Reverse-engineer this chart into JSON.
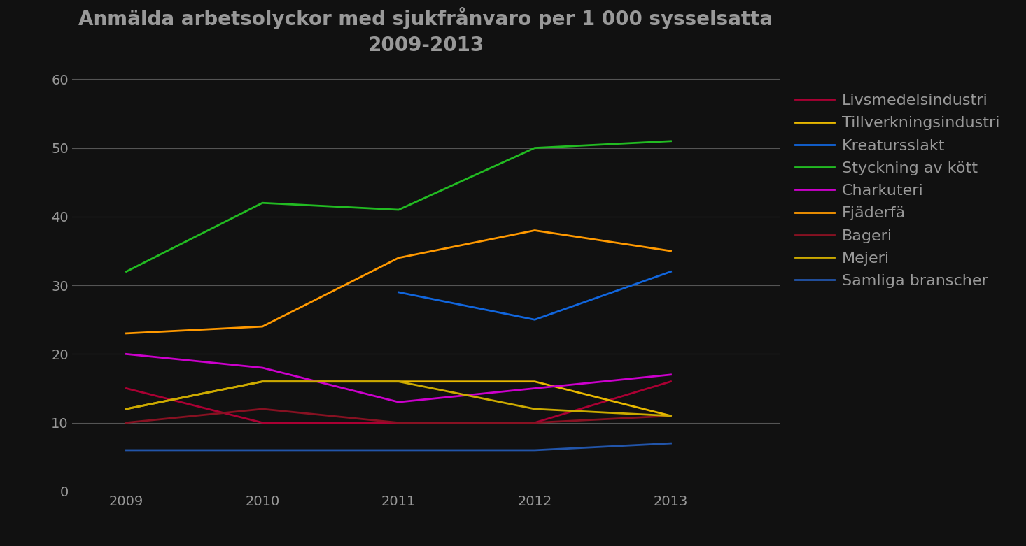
{
  "title_line1": "Anmälda arbetsolyckor med sjukfrånvaro per 1 000 sysselsatta",
  "title_line2": "2009-2013",
  "years": [
    2009,
    2010,
    2011,
    2012,
    2013
  ],
  "series": [
    {
      "label": "Livsmedelsindustri",
      "color": "#aa0033",
      "values": [
        15,
        10,
        10,
        10,
        16
      ],
      "linewidth": 2.0
    },
    {
      "label": "Tillverkningsindustri",
      "color": "#e8b800",
      "values": [
        12,
        16,
        16,
        16,
        11
      ],
      "linewidth": 2.0
    },
    {
      "label": "Kreatursslakt",
      "color": "#1166dd",
      "values": [
        null,
        null,
        29,
        25,
        32
      ],
      "linewidth": 2.0
    },
    {
      "label": "Styckning av kött",
      "color": "#22bb22",
      "values": [
        32,
        42,
        41,
        50,
        51
      ],
      "linewidth": 2.0
    },
    {
      "label": "Charkuteri",
      "color": "#cc00cc",
      "values": [
        20,
        18,
        13,
        15,
        17
      ],
      "linewidth": 2.0
    },
    {
      "label": "Fjäderfä",
      "color": "#ff9900",
      "values": [
        23,
        24,
        34,
        38,
        35
      ],
      "linewidth": 2.0
    },
    {
      "label": "Bageri",
      "color": "#881122",
      "values": [
        10,
        12,
        10,
        10,
        11
      ],
      "linewidth": 2.0
    },
    {
      "label": "Mejeri",
      "color": "#ccaa00",
      "values": [
        12,
        16,
        16,
        12,
        11
      ],
      "linewidth": 2.0
    },
    {
      "label": "Samliga branscher",
      "color": "#2255aa",
      "values": [
        6,
        6,
        6,
        6,
        7
      ],
      "linewidth": 2.0
    }
  ],
  "background_color": "#111111",
  "text_color": "#999999",
  "grid_color": "#555555",
  "ylim": [
    0,
    62
  ],
  "yticks": [
    0,
    10,
    20,
    30,
    40,
    50,
    60
  ],
  "title_fontsize": 20,
  "legend_fontsize": 16,
  "tick_fontsize": 14
}
